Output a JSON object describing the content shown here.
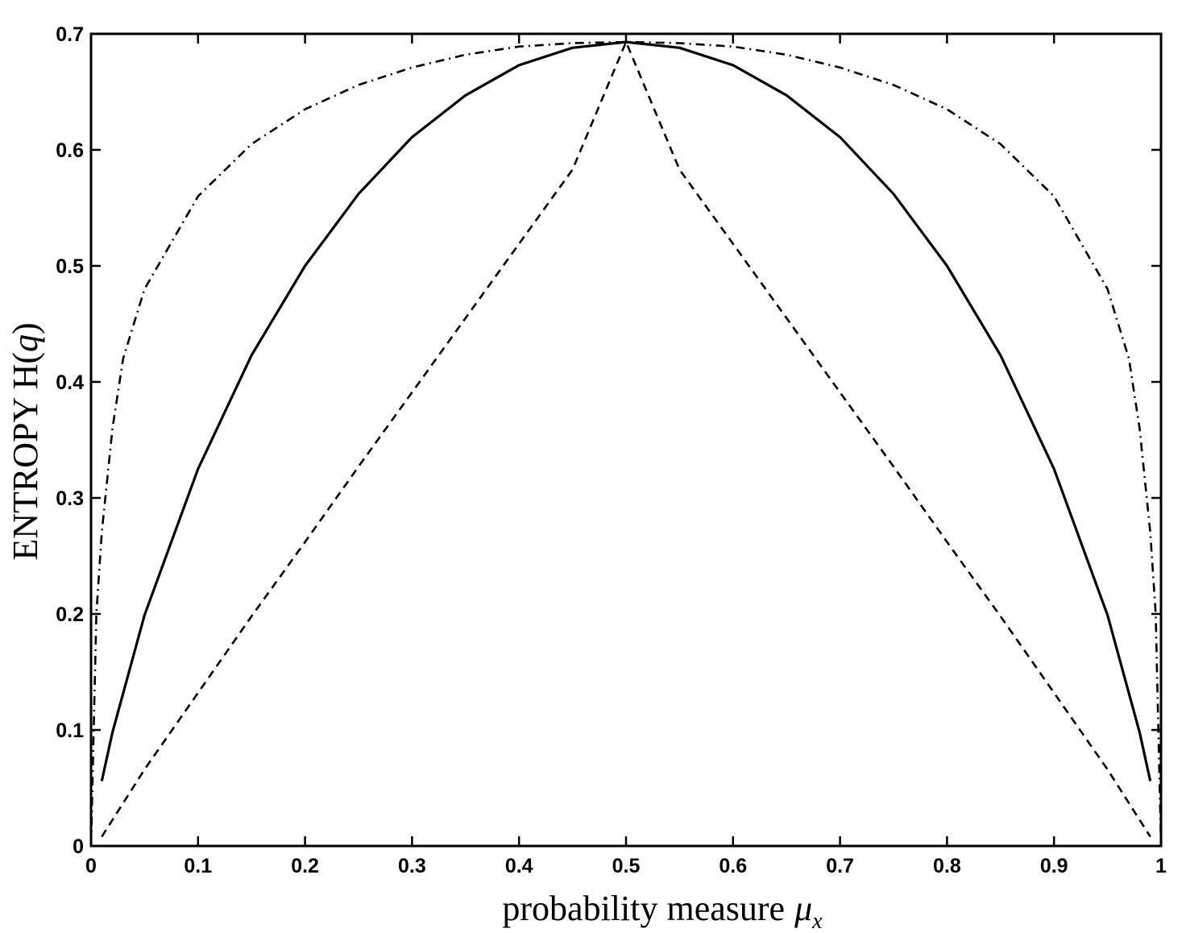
{
  "chart_data": {
    "type": "line",
    "title": "",
    "xlabel": "probability measure",
    "xlabel_symbol": "μ",
    "xlabel_subscript": "x",
    "ylabel_prefix": "ENTROPY H(",
    "ylabel_var": "q",
    "ylabel_suffix": ")",
    "xlim": [
      0,
      1
    ],
    "ylim": [
      0,
      0.7
    ],
    "grid": false,
    "x_ticks": [
      "0",
      "0.1",
      "0.2",
      "0.3",
      "0.4",
      "0.5",
      "0.6",
      "0.7",
      "0.8",
      "0.9",
      "1"
    ],
    "y_ticks": [
      "0",
      "0.1",
      "0.2",
      "0.3",
      "0.4",
      "0.5",
      "0.6",
      "0.7"
    ],
    "series": [
      {
        "style": "solid",
        "color": "#000000",
        "x": [
          0.01,
          0.02,
          0.05,
          0.1,
          0.15,
          0.2,
          0.25,
          0.3,
          0.35,
          0.4,
          0.45,
          0.5,
          0.55,
          0.6,
          0.65,
          0.7,
          0.75,
          0.8,
          0.85,
          0.9,
          0.95,
          0.98,
          0.99
        ],
        "y": [
          0.056,
          0.098,
          0.199,
          0.325,
          0.423,
          0.5,
          0.562,
          0.611,
          0.647,
          0.673,
          0.688,
          0.693,
          0.688,
          0.673,
          0.647,
          0.611,
          0.562,
          0.5,
          0.423,
          0.325,
          0.199,
          0.098,
          0.056
        ]
      },
      {
        "style": "dashed",
        "color": "#000000",
        "x": [
          0.01,
          0.05,
          0.1,
          0.15,
          0.2,
          0.25,
          0.3,
          0.35,
          0.4,
          0.45,
          0.5,
          0.55,
          0.6,
          0.65,
          0.7,
          0.75,
          0.8,
          0.85,
          0.9,
          0.95,
          0.99
        ],
        "y": [
          0.008,
          0.066,
          0.132,
          0.198,
          0.262,
          0.327,
          0.391,
          0.455,
          0.519,
          0.583,
          0.693,
          0.583,
          0.519,
          0.455,
          0.391,
          0.327,
          0.262,
          0.198,
          0.132,
          0.066,
          0.008
        ]
      },
      {
        "style": "dash-dot",
        "color": "#000000",
        "x": [
          0.0,
          0.005,
          0.01,
          0.02,
          0.03,
          0.05,
          0.1,
          0.15,
          0.2,
          0.25,
          0.3,
          0.35,
          0.4,
          0.45,
          0.5,
          0.55,
          0.6,
          0.65,
          0.7,
          0.75,
          0.8,
          0.85,
          0.9,
          0.95,
          0.97,
          0.98,
          0.99,
          0.995,
          1.0
        ],
        "y": [
          0.0,
          0.2,
          0.27,
          0.36,
          0.42,
          0.48,
          0.56,
          0.605,
          0.635,
          0.656,
          0.671,
          0.682,
          0.689,
          0.692,
          0.693,
          0.692,
          0.689,
          0.682,
          0.671,
          0.656,
          0.635,
          0.605,
          0.56,
          0.48,
          0.42,
          0.36,
          0.27,
          0.2,
          0.0
        ]
      }
    ]
  }
}
